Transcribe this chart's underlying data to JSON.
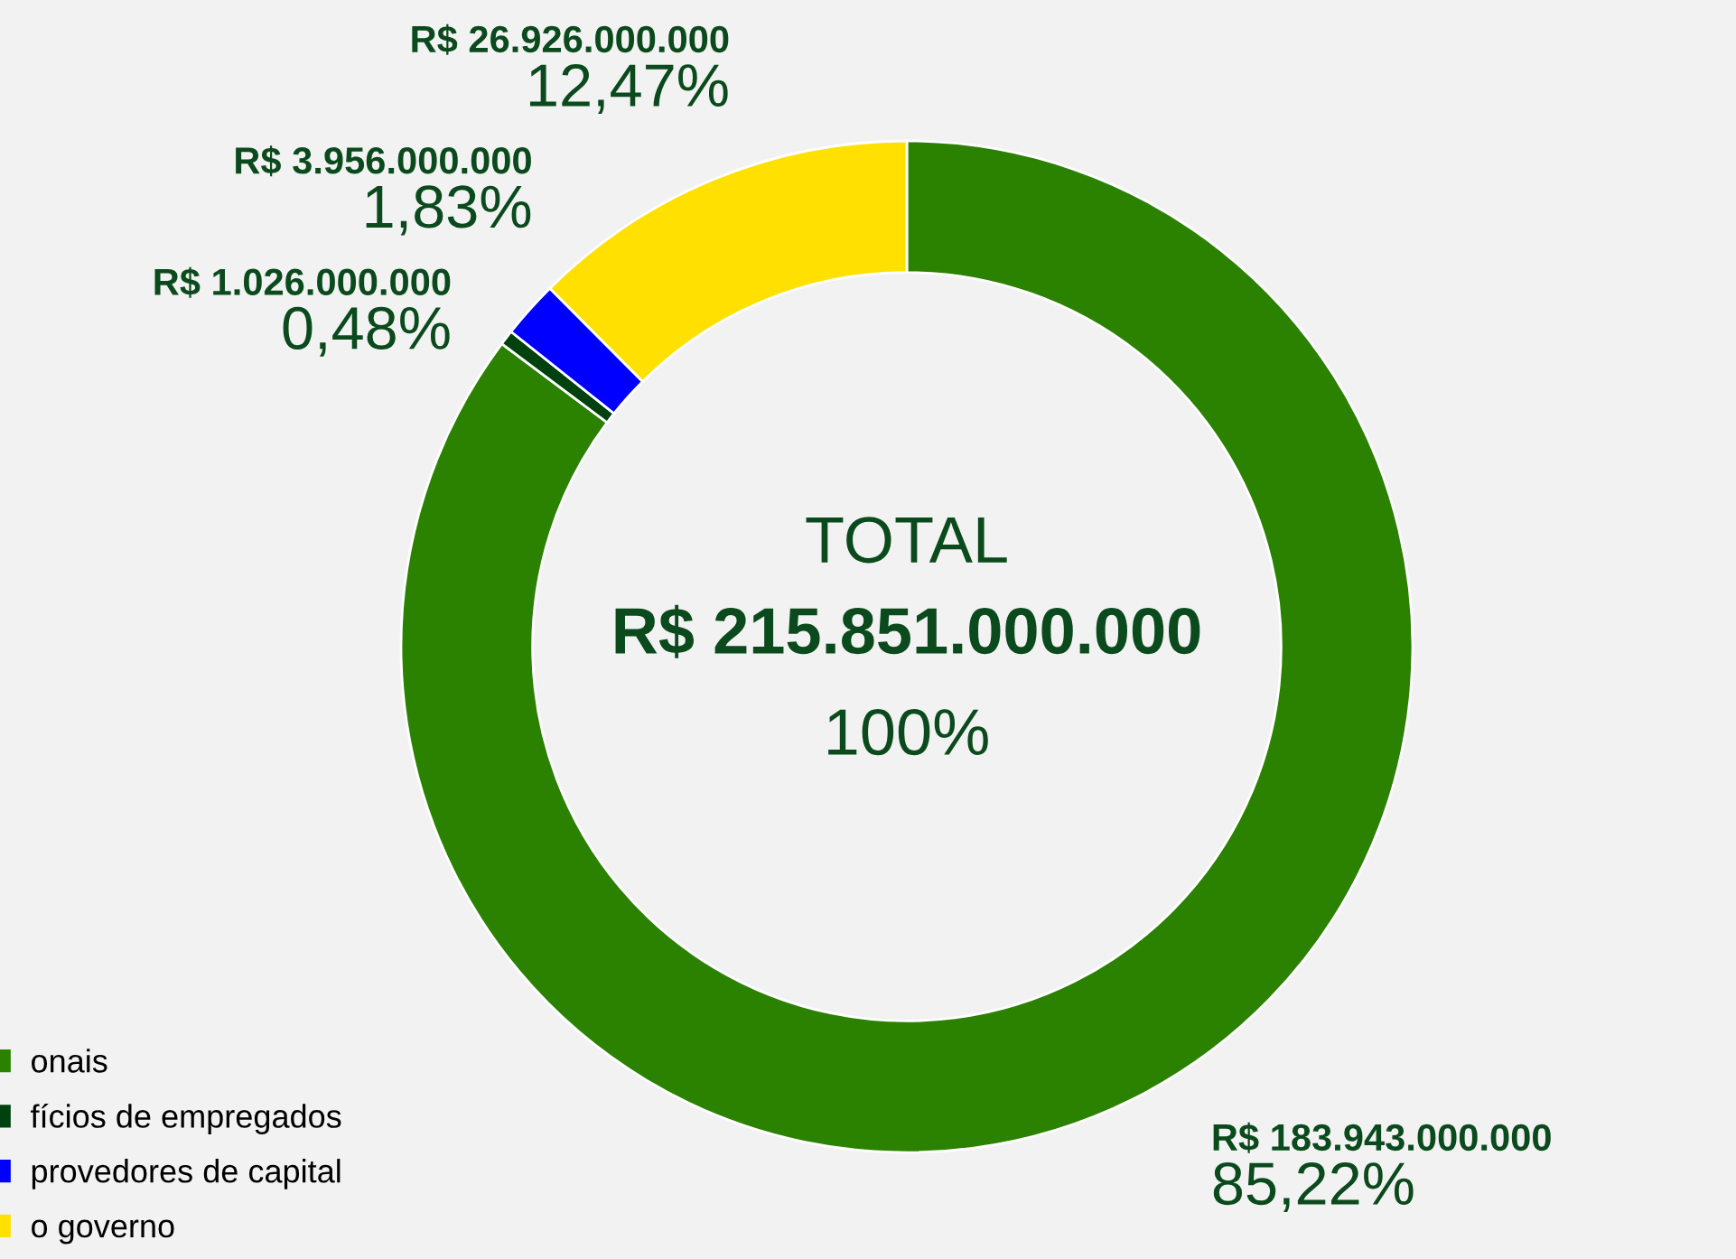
{
  "chart_data": {
    "type": "donut",
    "categories": [
      "onais",
      "fícios de empregados",
      "provedores de capital",
      "o governo"
    ],
    "values": [
      85.22,
      0.48,
      1.83,
      12.47
    ],
    "colors": [
      "#2a8200",
      "#00420f",
      "#0000ff",
      "#ffe000"
    ],
    "value_labels": [
      "R$ 183.943.000.000\n85,22%",
      "R$ 1.026.000.000\n0,48%",
      "R$ 3.956.000.000\n1,83%",
      "R$ 26.926.000.000\n12,47%"
    ],
    "annotations": [
      "TOTAL",
      "R$ 215.851.000.000",
      "100%"
    ],
    "legend": "bottom left"
  }
}
